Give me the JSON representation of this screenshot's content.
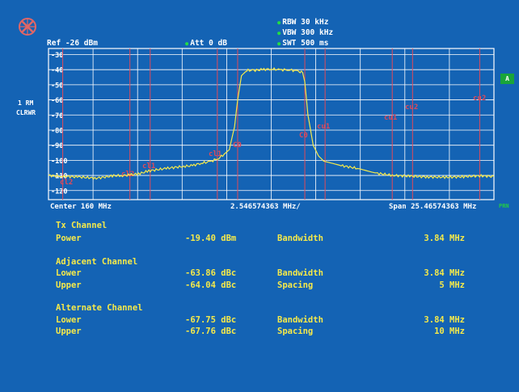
{
  "header": {
    "ref": "Ref -26 dBm",
    "att": "Att  0 dB",
    "rbw": "RBW 30 kHz",
    "vbw": "VBW 300 kHz",
    "swt": "SWT 500 ms"
  },
  "side": {
    "trace": "1 RM",
    "mode": "CLRWR",
    "marker_a": "A",
    "prn": "PRN"
  },
  "grid": {
    "y_labels": [
      "-30",
      "-40",
      "-50",
      "-60",
      "-70",
      "-80",
      "-90",
      "-100",
      "-110",
      "-120"
    ]
  },
  "footer": {
    "center": "Center 160 MHz",
    "div": "2.546574363 MHz/",
    "span": "Span 25.46574363 MHz"
  },
  "channel_labels": [
    "cl2",
    "cl1",
    "cl1",
    "C0",
    "C0",
    "cu1",
    "cu1",
    "cu2",
    "cu2",
    "cl2"
  ],
  "results": {
    "tx": {
      "heading": "Tx Channel",
      "power_label": "Power",
      "power_value": "-19.40 dBm",
      "bw_label": "Bandwidth",
      "bw_value": "3.84 MHz"
    },
    "adjacent": {
      "heading": "Adjacent Channel",
      "lower_label": "Lower",
      "lower_value": "-63.86 dBc",
      "bw_label": "Bandwidth",
      "bw_value": "3.84 MHz",
      "upper_label": "Upper",
      "upper_value": "-64.04 dBc",
      "spacing_label": "Spacing",
      "spacing_value": "5 MHz"
    },
    "alternate": {
      "heading": "Alternate Channel",
      "lower_label": "Lower",
      "lower_value": "-67.75 dBc",
      "bw_label": "Bandwidth",
      "bw_value": "3.84 MHz",
      "upper_label": "Upper",
      "upper_value": "-67.76 dBc",
      "spacing_label": "Spacing",
      "spacing_value": "10 MHz"
    }
  },
  "chart_data": {
    "type": "line",
    "xlabel": "",
    "ylabel": "",
    "x_unit": "MHz",
    "y_unit": "dBm",
    "xlim": [
      147.26712818,
      172.73287182
    ],
    "ylim": [
      -126,
      -26
    ],
    "x": [
      147.27,
      148.0,
      149.0,
      150.0,
      151.0,
      151.5,
      152.0,
      152.5,
      153.0,
      154.0,
      155.0,
      155.5,
      156.0,
      156.5,
      157.0,
      157.3,
      157.6,
      157.9,
      158.08,
      158.3,
      158.6,
      159.0,
      159.5,
      160.0,
      160.5,
      161.0,
      161.5,
      161.8,
      161.92,
      162.1,
      162.4,
      162.7,
      163.0,
      164.0,
      165.0,
      166.0,
      167.0,
      168.0,
      169.0,
      170.0,
      171.0,
      172.0,
      172.73
    ],
    "y": [
      -110.0,
      -110.5,
      -111.0,
      -111.8,
      -110.2,
      -110.0,
      -109.6,
      -108.7,
      -107.0,
      -105.3,
      -104.0,
      -103.5,
      -101.8,
      -101.0,
      -98.5,
      -96.0,
      -93.0,
      -78.0,
      -60.0,
      -44.0,
      -40.5,
      -40.5,
      -40.0,
      -39.5,
      -40.2,
      -40.0,
      -41.0,
      -42.0,
      -48.0,
      -70.0,
      -90.0,
      -97.0,
      -100.5,
      -103.5,
      -105.5,
      -108.5,
      -110.0,
      -110.5,
      -111.0,
      -111.2,
      -110.8,
      -110.2,
      -110.8
    ],
    "grid": true,
    "channel_boundaries_mhz": [
      {
        "channel": "alt-lower",
        "start": 148.08,
        "end": 151.92
      },
      {
        "channel": "adj-lower",
        "start": 153.08,
        "end": 156.92
      },
      {
        "channel": "tx",
        "start": 158.08,
        "end": 161.92
      },
      {
        "channel": "adj-upper",
        "start": 163.08,
        "end": 166.92
      },
      {
        "channel": "alt-upper",
        "start": 168.08,
        "end": 171.92
      }
    ]
  }
}
